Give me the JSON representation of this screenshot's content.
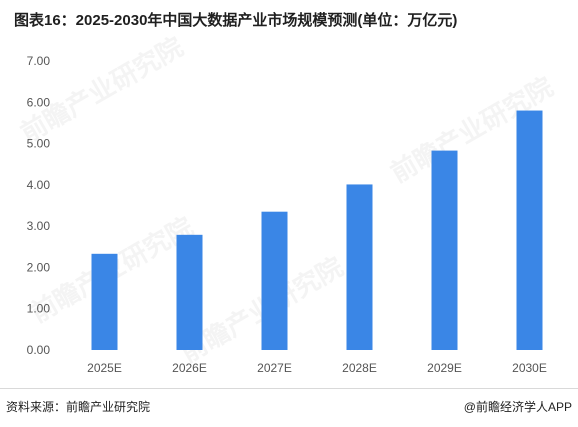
{
  "header": {
    "title": "图表16：2025-2030年中国大数据产业市场规模预测(单位：万亿元)"
  },
  "chart_data": {
    "type": "bar",
    "title": "图表16：2025-2030年中国大数据产业市场规模预测(单位：万亿元)",
    "categories": [
      "2025E",
      "2026E",
      "2027E",
      "2028E",
      "2029E",
      "2030E"
    ],
    "values": [
      2.33,
      2.79,
      3.35,
      4.01,
      4.83,
      5.8
    ],
    "ylim": [
      0,
      7
    ],
    "yticks": [
      "0.00",
      "1.00",
      "2.00",
      "3.00",
      "4.00",
      "5.00",
      "6.00",
      "7.00"
    ],
    "xlabel": "",
    "ylabel": "",
    "grid": false,
    "bar_color": "#3a86e6"
  },
  "footer": {
    "source": "资料来源：前瞻产业研究院",
    "brand": "@前瞻经济学人APP"
  },
  "watermark": "前瞻产业研究院"
}
